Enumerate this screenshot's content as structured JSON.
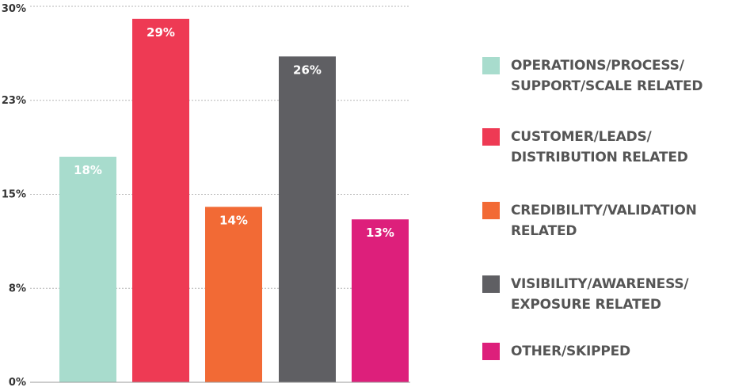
{
  "chart_data": {
    "type": "bar",
    "categories": [
      "OPERATIONS/PROCESS/\nSUPPORT/SCALE RELATED",
      "CUSTOMER/LEADS/\nDISTRIBUTION RELATED",
      "CREDIBILITY/VALIDATION\nRELATED",
      "VISIBILITY/AWARENESS/\nEXPOSURE RELATED",
      "OTHER/SKIPPED"
    ],
    "values": [
      18,
      29,
      14,
      26,
      13
    ],
    "value_labels": [
      "18%",
      "29%",
      "14%",
      "26%",
      "13%"
    ],
    "colors": [
      "#a8dccd",
      "#ee3a54",
      "#f26a35",
      "#5f5f63",
      "#dd1f7b"
    ],
    "yticks": [
      0,
      7.5,
      15,
      22.5,
      30
    ],
    "ytick_labels": [
      "0%",
      "8%",
      "15%",
      "23%",
      "30%"
    ],
    "ylim": [
      0,
      30
    ],
    "grid": true,
    "legend_position": "right",
    "title": "",
    "xlabel": "",
    "ylabel": ""
  }
}
